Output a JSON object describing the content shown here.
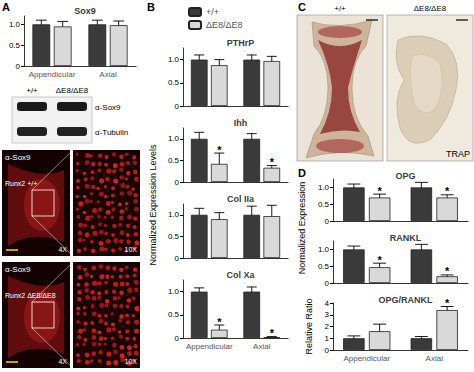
{
  "figure": {
    "panel_labels": [
      "A",
      "B",
      "C",
      "D"
    ],
    "genotypes": [
      "+/+",
      "ΔE8/ΔE8"
    ],
    "blot": {
      "rows": [
        "α-Sox9",
        "α-Tubulin"
      ]
    },
    "micrographs": {
      "stain": "α-Sox9",
      "rows": [
        "Runx2 +/+",
        "Runx2 ΔE8/ΔE8"
      ],
      "magnifications": [
        "4X",
        "10X"
      ]
    },
    "trap_stain": "TRAP",
    "shared_axis_labels": {
      "B": "Normalized Expression Levels",
      "D": "Normalized Expression"
    }
  },
  "chart_data": [
    {
      "type": "bar",
      "title": "Sox9",
      "categories": [
        "Appendicular",
        "Axial"
      ],
      "series": [
        {
          "name": "+/+",
          "color": "#3a3a3a",
          "values": [
            1.0,
            1.0
          ],
          "errors": [
            0.1,
            0.1
          ]
        },
        {
          "name": "ΔE8/ΔE8",
          "color": "#d9d9d9",
          "values": [
            0.95,
            0.98
          ],
          "errors": [
            0.12,
            0.1
          ]
        }
      ],
      "ylim": [
        0,
        1.2
      ],
      "yticks": [
        0,
        0.5,
        {
          "value": 1,
          "label": "1.0"
        }
      ],
      "grid": false
    },
    {
      "type": "bar",
      "title": "PTHrP",
      "categories": [
        "Appendicular",
        "Axial"
      ],
      "series": [
        {
          "name": "+/+",
          "color": "#3a3a3a",
          "values": [
            1.0,
            1.0
          ],
          "errors": [
            0.1,
            0.1
          ]
        },
        {
          "name": "ΔE8/ΔE8",
          "color": "#d9d9d9",
          "values": [
            0.88,
            0.97
          ],
          "errors": [
            0.12,
            0.1
          ]
        }
      ],
      "ylim": [
        0,
        1.25
      ],
      "yticks": [
        0,
        0.5,
        {
          "value": 1,
          "label": "1.0"
        }
      ],
      "grid": false,
      "legend": "top",
      "tick_labels": "y"
    },
    {
      "type": "bar",
      "title": "Ihh",
      "categories": [
        "Appendicular",
        "Axial"
      ],
      "series": [
        {
          "name": "+/+",
          "color": "#3a3a3a",
          "values": [
            1.0,
            1.0
          ],
          "errors": [
            0.15,
            0.12
          ]
        },
        {
          "name": "ΔE8/ΔE8",
          "color": "#d9d9d9",
          "values": [
            0.42,
            0.33
          ],
          "errors": [
            0.25,
            0.05
          ]
        }
      ],
      "ylim": [
        0,
        1.25
      ],
      "yticks": [
        0,
        0.5,
        {
          "value": 1,
          "label": "1.0"
        }
      ],
      "grid": false,
      "tick_labels": "y",
      "annotations": [
        {
          "category": "Appendicular",
          "series": "ΔE8/ΔE8",
          "text": "*"
        },
        {
          "category": "Axial",
          "series": "ΔE8/ΔE8",
          "text": "*"
        }
      ]
    },
    {
      "type": "bar",
      "title": "Col IIa",
      "categories": [
        "Appendicular",
        "Axial"
      ],
      "series": [
        {
          "name": "+/+",
          "color": "#3a3a3a",
          "values": [
            1.0,
            1.0
          ],
          "errors": [
            0.15,
            0.2
          ]
        },
        {
          "name": "ΔE8/ΔE8",
          "color": "#d9d9d9",
          "values": [
            0.9,
            0.97
          ],
          "errors": [
            0.15,
            0.25
          ]
        }
      ],
      "ylim": [
        0,
        1.25
      ],
      "yticks": [
        0,
        0.5,
        {
          "value": 1,
          "label": "1.0"
        }
      ],
      "grid": false,
      "tick_labels": "y"
    },
    {
      "type": "bar",
      "title": "Col Xa",
      "categories": [
        "Appendicular",
        "Axial"
      ],
      "series": [
        {
          "name": "+/+",
          "color": "#3a3a3a",
          "values": [
            1.0,
            1.0
          ],
          "errors": [
            0.08,
            0.1
          ]
        },
        {
          "name": "ΔE8/ΔE8",
          "color": "#d9d9d9",
          "values": [
            0.18,
            0.02
          ],
          "errors": [
            0.1,
            0.01
          ]
        }
      ],
      "ylim": [
        0,
        1.25
      ],
      "yticks": [
        0,
        0.5,
        {
          "value": 1,
          "label": "1.0"
        }
      ],
      "grid": false,
      "annotations": [
        {
          "category": "Appendicular",
          "series": "ΔE8/ΔE8",
          "text": "*"
        },
        {
          "category": "Axial",
          "series": "ΔE8/ΔE8",
          "text": "*"
        }
      ]
    },
    {
      "type": "bar",
      "title": "OPG",
      "categories": [
        "Appendicular",
        "Axial"
      ],
      "series": [
        {
          "name": "+/+",
          "color": "#3a3a3a",
          "values": [
            1.0,
            1.0
          ],
          "errors": [
            0.1,
            0.15
          ]
        },
        {
          "name": "ΔE8/ΔE8",
          "color": "#d9d9d9",
          "values": [
            0.7,
            0.7
          ],
          "errors": [
            0.1,
            0.08
          ]
        }
      ],
      "ylim": [
        0,
        1.25
      ],
      "yticks": [
        0,
        0.5,
        {
          "value": 1,
          "label": "1.0"
        }
      ],
      "grid": false,
      "tick_labels": "y",
      "annotations": [
        {
          "category": "Appendicular",
          "series": "ΔE8/ΔE8",
          "text": "*"
        },
        {
          "category": "Axial",
          "series": "ΔE8/ΔE8",
          "text": "*"
        }
      ]
    },
    {
      "type": "bar",
      "title": "RANKL",
      "categories": [
        "Appendicular",
        "Axial"
      ],
      "series": [
        {
          "name": "+/+",
          "color": "#3a3a3a",
          "values": [
            1.0,
            1.0
          ],
          "errors": [
            0.1,
            0.15
          ]
        },
        {
          "name": "ΔE8/ΔE8",
          "color": "#d9d9d9",
          "values": [
            0.47,
            0.2
          ],
          "errors": [
            0.12,
            0.04
          ]
        }
      ],
      "ylim": [
        0,
        1.25
      ],
      "yticks": [
        0,
        0.5,
        {
          "value": 1,
          "label": "1.0"
        }
      ],
      "grid": false,
      "tick_labels": "y",
      "annotations": [
        {
          "category": "Appendicular",
          "series": "ΔE8/ΔE8",
          "text": "*"
        },
        {
          "category": "Axial",
          "series": "ΔE8/ΔE8",
          "text": "*"
        }
      ]
    },
    {
      "type": "bar",
      "title": "OPG/RANKL",
      "ylabel": "Relative Ratio",
      "categories": [
        "Appendicular",
        "Axial"
      ],
      "series": [
        {
          "name": "+/+",
          "color": "#3a3a3a",
          "values": [
            1.0,
            1.0
          ],
          "errors": [
            0.2,
            0.15
          ]
        },
        {
          "name": "ΔE8/ΔE8",
          "color": "#d9d9d9",
          "values": [
            1.6,
            3.4
          ],
          "errors": [
            0.6,
            0.3
          ]
        }
      ],
      "ylim": [
        0,
        4
      ],
      "yticks": [
        0,
        1,
        2,
        3,
        4
      ],
      "grid": false,
      "annotations": [
        {
          "category": "Axial",
          "series": "ΔE8/ΔE8",
          "text": "*"
        }
      ]
    }
  ]
}
